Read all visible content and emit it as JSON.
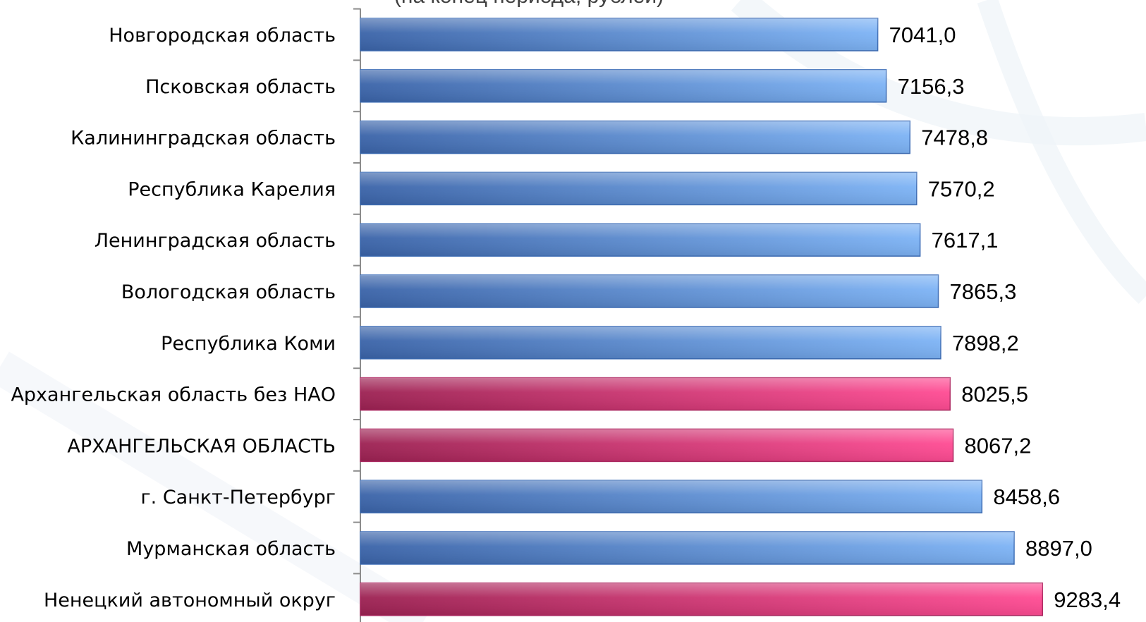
{
  "chart_data": {
    "type": "bar",
    "orientation": "horizontal",
    "subtitle": "(на конец периода, рублей)",
    "categories": [
      "Новгородская область",
      "Псковская область",
      "Калининградская область",
      "Республика Карелия",
      "Ленинградская область",
      "Вологодская область",
      "Республика Коми",
      "Архангельская область без НАО",
      "АРХАНГЕЛЬСКАЯ ОБЛАСТЬ",
      "г. Санкт-Петербург",
      "Мурманская область",
      "Ненецкий автономный округ"
    ],
    "values": [
      7041.0,
      7156.3,
      7478.8,
      7570.2,
      7617.1,
      7865.3,
      7898.2,
      8025.5,
      8067.2,
      8458.6,
      8897.0,
      9283.4
    ],
    "value_labels": [
      "7041,0",
      "7156,3",
      "7478,8",
      "7570,2",
      "7617,1",
      "7865,3",
      "7898,2",
      "8025,5",
      "8067,2",
      "8458,6",
      "8897,0",
      "9283,4"
    ],
    "highlighted": [
      false,
      false,
      false,
      false,
      false,
      false,
      false,
      true,
      true,
      false,
      false,
      true
    ],
    "colors": {
      "default_dark": "#3a63a8",
      "default_light": "#7db3f5",
      "highlight_dark": "#9c2152",
      "highlight_light": "#ff4b93"
    },
    "xlim": [
      0,
      9300
    ],
    "grid": false,
    "legend": "none"
  }
}
